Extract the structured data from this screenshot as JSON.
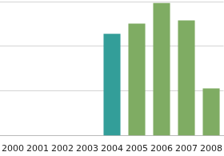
{
  "chart_data": {
    "type": "bar",
    "categories": [
      "2000",
      "2001",
      "2002",
      "2003",
      "2004",
      "2005",
      "2006",
      "2007",
      "2008"
    ],
    "values": [
      null,
      null,
      null,
      null,
      2.28,
      2.51,
      2.97,
      2.58,
      1.06
    ],
    "colors": [
      "#7fac63",
      "#7fac63",
      "#7fac63",
      "#7fac63",
      "#339e99",
      "#7fac63",
      "#7fac63",
      "#7fac63",
      "#7fac63"
    ],
    "ylim": [
      0,
      3
    ],
    "yticks": [
      0,
      1,
      2,
      3
    ],
    "grid": true,
    "tick_labels": "x"
  }
}
